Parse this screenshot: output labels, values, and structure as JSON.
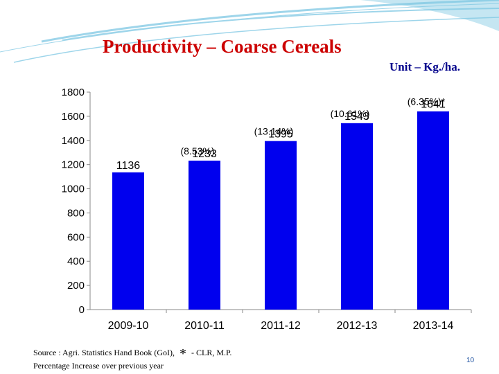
{
  "slide": {
    "title": "Productivity – Coarse Cereals",
    "unit": "Unit – Kg./ha.",
    "source_prefix": "Source : Agri. Statistics Hand Book (GoI),",
    "source_star": "*",
    "source_suffix": "- CLR, M.P.",
    "note": "Percentage Increase over previous year",
    "page_number": "10",
    "accent_color": "#cc0000",
    "unit_color": "#00008b",
    "swoosh_color": "#4fb3d9"
  },
  "chart_data": {
    "type": "bar",
    "title": "",
    "xlabel": "",
    "ylabel": "",
    "categories": [
      "2009-10",
      "2010-11",
      "2011-12",
      "2012-13",
      "2013-14"
    ],
    "series": [
      {
        "values": [
          1136,
          1233,
          1395,
          1543,
          1641
        ],
        "data_labels": [
          "1136",
          "1233",
          "1395",
          "1543",
          "1641"
        ],
        "color": "#0000ee"
      }
    ],
    "percent_labels": [
      "",
      "(8.53%)",
      "(13.14%)",
      "(10.61%)",
      "(6.35%)*"
    ],
    "ylim": [
      0,
      1800
    ],
    "yticks": [
      0,
      200,
      400,
      600,
      800,
      1000,
      1200,
      1400,
      1600,
      1800
    ],
    "grid": false,
    "legend": "none"
  }
}
